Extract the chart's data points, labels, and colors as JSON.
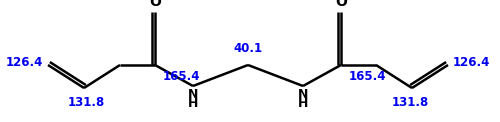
{
  "background_color": "#ffffff",
  "bond_color": "#000000",
  "label_color": "#0000ee",
  "nmr_labels": {
    "c1_left": "126.4",
    "c2_left": "131.8",
    "carbonyl_left": "165.4",
    "methylene": "40.1",
    "carbonyl_right": "165.4",
    "c1_right": "126.4",
    "c2_right": "131.8"
  }
}
